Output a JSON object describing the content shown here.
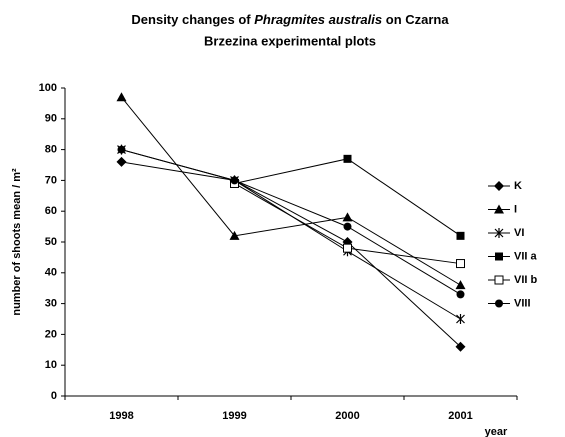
{
  "chart_data": {
    "type": "line",
    "title": [
      "Density changes of",
      "Phragmites australis",
      "on Czarna",
      "Brzezina experimental plots"
    ],
    "y_label": "number of shoots mean / m²",
    "x_label": "year",
    "categories": [
      "1998",
      "1999",
      "2000",
      "2001"
    ],
    "ylim": [
      0,
      100
    ],
    "yticks": [
      0,
      10,
      20,
      30,
      40,
      50,
      60,
      70,
      80,
      90,
      100
    ],
    "legend": "right",
    "series": [
      {
        "name": "K",
        "color": "#000000",
        "marker": "diamond",
        "values": [
          76,
          70,
          50,
          16
        ]
      },
      {
        "name": "I",
        "color": "#000000",
        "marker": "triangle",
        "values": [
          97,
          52,
          58,
          36
        ]
      },
      {
        "name": "VI",
        "color": "#000000",
        "marker": "asterisk",
        "values": [
          80,
          70,
          47,
          25
        ]
      },
      {
        "name": "VII a",
        "color": "#000000",
        "marker": "square",
        "values": [
          null,
          69,
          77,
          52
        ]
      },
      {
        "name": "VII b",
        "color": "#000000",
        "marker": "open-square",
        "values": [
          null,
          69,
          48,
          43
        ]
      },
      {
        "name": "VIII",
        "color": "#000000",
        "marker": "circle",
        "values": [
          80,
          70,
          55,
          33
        ]
      }
    ]
  }
}
